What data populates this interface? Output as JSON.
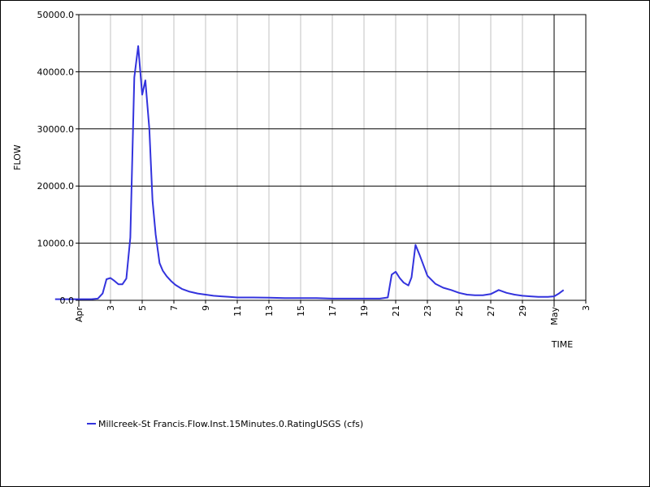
{
  "chart_data": {
    "type": "line",
    "title": "",
    "xlabel": "TIME",
    "ylabel": "FLOW",
    "xlim": [
      0,
      32
    ],
    "ylim": [
      0,
      50000
    ],
    "y_ticks": [
      {
        "value": 0,
        "label": "0.0"
      },
      {
        "value": 10000,
        "label": "10000.0"
      },
      {
        "value": 20000,
        "label": "20000.0"
      },
      {
        "value": 30000,
        "label": "30000.0"
      },
      {
        "value": 40000,
        "label": "40000.0"
      },
      {
        "value": 50000,
        "label": "50000.0"
      }
    ],
    "x_minor_ticks": [
      {
        "value": 2,
        "label": "3"
      },
      {
        "value": 4,
        "label": "5"
      },
      {
        "value": 6,
        "label": "7"
      },
      {
        "value": 8,
        "label": "9"
      },
      {
        "value": 10,
        "label": "11"
      },
      {
        "value": 12,
        "label": "13"
      },
      {
        "value": 14,
        "label": "15"
      },
      {
        "value": 16,
        "label": "17"
      },
      {
        "value": 18,
        "label": "19"
      },
      {
        "value": 20,
        "label": "21"
      },
      {
        "value": 22,
        "label": "23"
      },
      {
        "value": 24,
        "label": "25"
      },
      {
        "value": 26,
        "label": "27"
      },
      {
        "value": 28,
        "label": "29"
      },
      {
        "value": 32,
        "label": "3"
      }
    ],
    "x_major_ticks": [
      {
        "value": 0,
        "label": "Apr"
      },
      {
        "value": 30,
        "label": "May"
      }
    ],
    "grid": true,
    "legend_position": "bottom-left",
    "series": [
      {
        "name": "Millcreek-St Francis.Flow.Inst.15Minutes.0.RatingUSGS (cfs)",
        "color": "#3333dd",
        "x": [
          -1.5,
          -0.5,
          0.8,
          1.2,
          1.5,
          1.75,
          2.0,
          2.25,
          2.5,
          2.75,
          3.0,
          3.25,
          3.5,
          3.75,
          4.0,
          4.2,
          4.45,
          4.65,
          4.85,
          5.1,
          5.3,
          5.55,
          5.85,
          6.1,
          6.5,
          7.0,
          7.5,
          8.0,
          8.5,
          9.0,
          9.5,
          10.0,
          11.0,
          12.0,
          13.0,
          14.0,
          15.0,
          16.0,
          16.5,
          17.0,
          18.0,
          19.0,
          19.5,
          19.75,
          20.0,
          20.25,
          20.5,
          20.8,
          21.0,
          21.25,
          21.5,
          21.8,
          22.0,
          22.5,
          23.0,
          23.5,
          24.0,
          24.5,
          25.0,
          25.5,
          26.0,
          26.5,
          27.0,
          27.5,
          28.0,
          28.5,
          29.0,
          29.3,
          29.6,
          30.0,
          30.3,
          30.6
        ],
        "y": [
          200,
          200,
          200,
          300,
          1200,
          3700,
          3900,
          3400,
          2800,
          2800,
          3800,
          11000,
          39000,
          44500,
          36000,
          38500,
          30000,
          17500,
          11500,
          6500,
          5200,
          4200,
          3300,
          2700,
          2000,
          1500,
          1200,
          1000,
          800,
          700,
          600,
          500,
          500,
          450,
          400,
          400,
          400,
          300,
          300,
          300,
          300,
          300,
          500,
          4500,
          5000,
          3900,
          3100,
          2600,
          4000,
          9700,
          8000,
          5800,
          4300,
          2900,
          2200,
          1800,
          1300,
          1000,
          900,
          900,
          1100,
          1800,
          1300,
          1000,
          800,
          700,
          600,
          600,
          600,
          700,
          1200,
          1800
        ]
      }
    ]
  }
}
